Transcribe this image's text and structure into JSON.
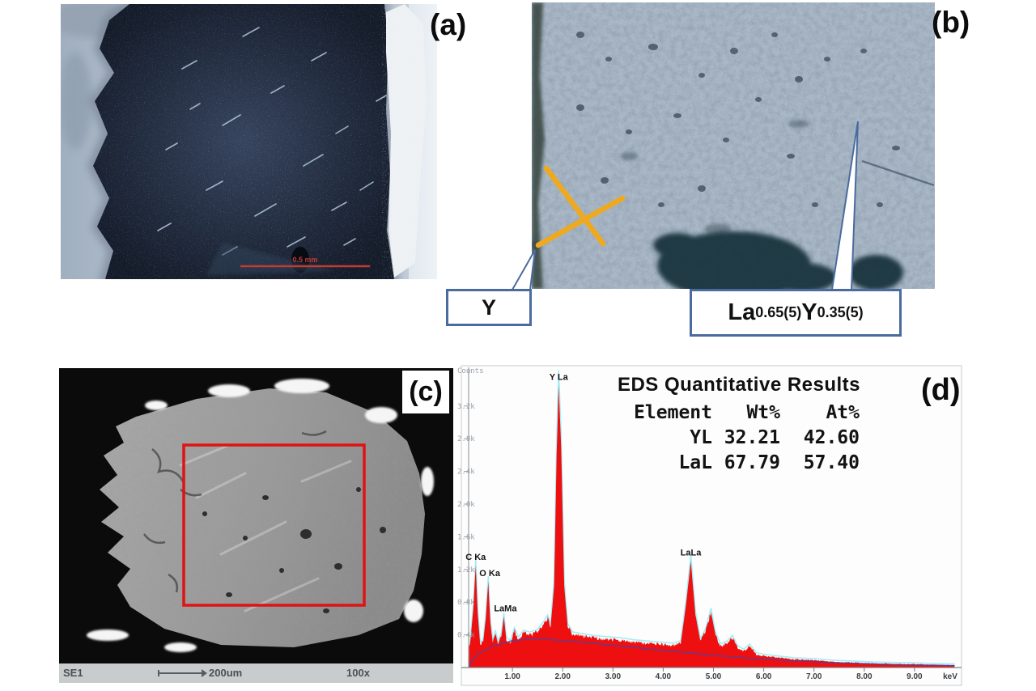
{
  "panels": {
    "a": {
      "label": "(a)",
      "scale_text": "0.5 mm",
      "scale_color": "#c23a34"
    },
    "b": {
      "label": "(b)",
      "marker_color": "#efa91f",
      "callout_border": "#4a6b9e",
      "y_callout": {
        "text": "Y"
      },
      "composition_callout": {
        "el1": "La",
        "sub1": "0.65(5)",
        "el2": "Y",
        "sub2": "0.35(5)"
      }
    },
    "c": {
      "label": "(c)",
      "detector": "SE1",
      "scale_text": "200um",
      "magnification": "100x",
      "roi_color": "#e01212"
    },
    "d": {
      "label": "(d)",
      "results": {
        "title": "EDS Quantitative Results",
        "headers": [
          "Element",
          "Wt%",
          "At%"
        ],
        "rows": [
          [
            "YL",
            "32.21",
            "42.60"
          ],
          [
            "LaL",
            "67.79",
            "57.40"
          ]
        ]
      }
    }
  },
  "chart_data": {
    "type": "area",
    "ylabel": "Counts",
    "x_unit": "keV",
    "xlim": [
      0,
      9.9
    ],
    "ylim": [
      0,
      3.6
    ],
    "grid": false,
    "colors": {
      "spectrum_fill": "#ee1010",
      "fit_line": "#a6ecf5",
      "baseline": "#5040a0",
      "axis": "#9aa0a6",
      "tick_text": "#9aa0a6",
      "x_tick_text": "#3a3d40"
    },
    "y_ticks": [
      {
        "label": "0.4k",
        "value": 0.4
      },
      {
        "label": "0.8k",
        "value": 0.8
      },
      {
        "label": "1.2k",
        "value": 1.2
      },
      {
        "label": "1.6k",
        "value": 1.6
      },
      {
        "label": "2.0k",
        "value": 2.0
      },
      {
        "label": "2.4k",
        "value": 2.4
      },
      {
        "label": "2.8k",
        "value": 2.8
      },
      {
        "label": "3.2k",
        "value": 3.2
      }
    ],
    "x_ticks": [
      {
        "label": "1.00",
        "value": 1
      },
      {
        "label": "2.00",
        "value": 2
      },
      {
        "label": "3.00",
        "value": 3
      },
      {
        "label": "4.00",
        "value": 4
      },
      {
        "label": "5.00",
        "value": 5
      },
      {
        "label": "6.00",
        "value": 6
      },
      {
        "label": "7.00",
        "value": 7
      },
      {
        "label": "8.00",
        "value": 8
      },
      {
        "label": "9.00",
        "value": 9
      }
    ],
    "peaks": [
      {
        "label": "C Ka",
        "keV": 0.27,
        "kcounts": 1.25
      },
      {
        "label": "O Ka",
        "keV": 0.55,
        "kcounts": 1.05
      },
      {
        "label": "LaMa",
        "keV": 0.86,
        "kcounts": 0.62
      },
      {
        "label": "Y La",
        "keV": 1.92,
        "kcounts": 3.45
      },
      {
        "label": "LaLa",
        "keV": 4.55,
        "kcounts": 1.3
      }
    ],
    "series": [
      {
        "name": "spectrum_kcounts_vs_keV",
        "points": [
          [
            0,
            0
          ],
          [
            0.08,
            0.1
          ],
          [
            0.16,
            0.3
          ],
          [
            0.22,
            0.7
          ],
          [
            0.27,
            1.25
          ],
          [
            0.31,
            0.65
          ],
          [
            0.36,
            0.28
          ],
          [
            0.42,
            0.32
          ],
          [
            0.47,
            0.6
          ],
          [
            0.52,
            1.05
          ],
          [
            0.56,
            0.55
          ],
          [
            0.61,
            0.3
          ],
          [
            0.66,
            0.42
          ],
          [
            0.71,
            0.3
          ],
          [
            0.78,
            0.38
          ],
          [
            0.83,
            0.62
          ],
          [
            0.88,
            0.34
          ],
          [
            0.96,
            0.3
          ],
          [
            1.04,
            0.45
          ],
          [
            1.12,
            0.34
          ],
          [
            1.22,
            0.42
          ],
          [
            1.35,
            0.4
          ],
          [
            1.5,
            0.43
          ],
          [
            1.62,
            0.52
          ],
          [
            1.7,
            0.6
          ],
          [
            1.76,
            0.5
          ],
          [
            1.83,
            1.0
          ],
          [
            1.88,
            2.6
          ],
          [
            1.92,
            3.45
          ],
          [
            1.97,
            2.7
          ],
          [
            2.03,
            1.0
          ],
          [
            2.1,
            0.5
          ],
          [
            2.2,
            0.4
          ],
          [
            2.4,
            0.38
          ],
          [
            2.6,
            0.36
          ],
          [
            2.8,
            0.35
          ],
          [
            3.0,
            0.34
          ],
          [
            3.2,
            0.33
          ],
          [
            3.4,
            0.31
          ],
          [
            3.6,
            0.3
          ],
          [
            3.8,
            0.29
          ],
          [
            4.0,
            0.28
          ],
          [
            4.2,
            0.27
          ],
          [
            4.35,
            0.3
          ],
          [
            4.45,
            0.75
          ],
          [
            4.55,
            1.3
          ],
          [
            4.64,
            0.65
          ],
          [
            4.74,
            0.32
          ],
          [
            4.85,
            0.45
          ],
          [
            4.95,
            0.68
          ],
          [
            5.04,
            0.4
          ],
          [
            5.14,
            0.26
          ],
          [
            5.28,
            0.3
          ],
          [
            5.38,
            0.36
          ],
          [
            5.48,
            0.24
          ],
          [
            5.6,
            0.2
          ],
          [
            5.72,
            0.26
          ],
          [
            5.85,
            0.16
          ],
          [
            6.0,
            0.14
          ],
          [
            6.3,
            0.12
          ],
          [
            6.6,
            0.1
          ],
          [
            7.0,
            0.09
          ],
          [
            7.4,
            0.07
          ],
          [
            7.8,
            0.06
          ],
          [
            8.2,
            0.05
          ],
          [
            8.6,
            0.045
          ],
          [
            9.0,
            0.04
          ],
          [
            9.4,
            0.032
          ],
          [
            9.8,
            0.028
          ]
        ]
      },
      {
        "name": "background_fit_kcounts_vs_keV",
        "points": [
          [
            0,
            0.02
          ],
          [
            0.3,
            0.16
          ],
          [
            0.6,
            0.26
          ],
          [
            1.0,
            0.33
          ],
          [
            1.4,
            0.35
          ],
          [
            1.8,
            0.34
          ],
          [
            2.2,
            0.32
          ],
          [
            2.6,
            0.3
          ],
          [
            3.0,
            0.27
          ],
          [
            3.4,
            0.25
          ],
          [
            3.8,
            0.22
          ],
          [
            4.2,
            0.2
          ],
          [
            4.6,
            0.175
          ],
          [
            5.0,
            0.15
          ],
          [
            5.4,
            0.13
          ],
          [
            5.8,
            0.11
          ],
          [
            6.2,
            0.095
          ],
          [
            6.6,
            0.08
          ],
          [
            7.0,
            0.07
          ],
          [
            7.6,
            0.055
          ],
          [
            8.2,
            0.045
          ],
          [
            8.8,
            0.035
          ],
          [
            9.4,
            0.03
          ],
          [
            9.8,
            0.025
          ]
        ]
      }
    ]
  }
}
